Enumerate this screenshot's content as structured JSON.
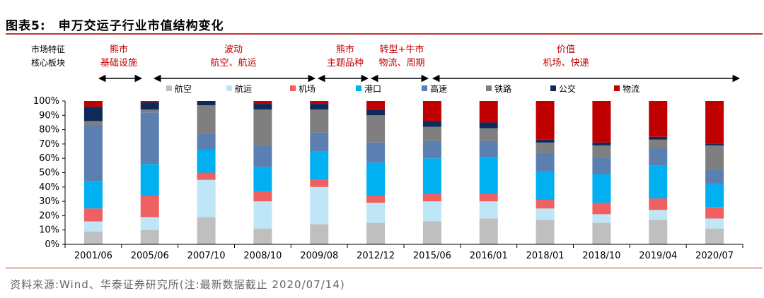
{
  "figure": {
    "title_num": "图表5:",
    "title": "申万交运子行业市值结构变化",
    "source": "资料来源:Wind、华泰证券研究所(注:最新数据截止 2020/07/14)"
  },
  "annotations": {
    "row_label_1": "市场特征",
    "row_label_2": "核心板块",
    "periods": [
      {
        "feature": "熊市",
        "sectors": "基础设施"
      },
      {
        "feature": "波动",
        "sectors": "航空、航运"
      },
      {
        "feature": "熊市",
        "sectors": "主题品种"
      },
      {
        "feature": "转型+牛市",
        "sectors": "物流、周期"
      },
      {
        "feature": "价值",
        "sectors": "机场、快递"
      }
    ]
  },
  "colors": {
    "航空": "#bfbfbf",
    "航运": "#bfe6f6",
    "机场": "#f06060",
    "港口": "#00b0f0",
    "高速": "#5a7fb0",
    "铁路": "#7f7f7f",
    "公交": "#0e2a5a",
    "物流": "#c00000",
    "accent": "#c4332b"
  },
  "chart_data": {
    "type": "bar",
    "stacked": true,
    "title": "申万交运子行业市值结构变化",
    "xlabel": "",
    "ylabel": "",
    "ylim": [
      0,
      100
    ],
    "y_ticks": [
      "0%",
      "10%",
      "20%",
      "30%",
      "40%",
      "50%",
      "60%",
      "70%",
      "80%",
      "90%",
      "100%"
    ],
    "legend_position": "top",
    "categories": [
      "2001/06",
      "2005/06",
      "2007/10",
      "2008/10",
      "2009/08",
      "2012/12",
      "2015/06",
      "2016/01",
      "2018/01",
      "2018/10",
      "2019/04",
      "2020/07"
    ],
    "series": [
      {
        "name": "航空",
        "values": [
          9,
          10,
          19,
          11,
          14,
          15,
          16,
          18,
          17,
          15,
          17,
          11
        ]
      },
      {
        "name": "航运",
        "values": [
          7,
          9,
          26,
          19,
          26,
          14,
          14,
          12,
          8,
          6,
          7,
          7
        ]
      },
      {
        "name": "机场",
        "values": [
          9,
          15,
          5,
          7,
          5,
          5,
          5,
          5,
          6,
          8,
          8,
          8
        ]
      },
      {
        "name": "港口",
        "values": [
          19,
          22,
          16,
          17,
          20,
          23,
          25,
          26,
          20,
          20,
          23,
          16
        ]
      },
      {
        "name": "高速",
        "values": [
          39,
          36,
          11,
          15,
          13,
          14,
          12,
          11,
          13,
          12,
          12,
          10
        ]
      },
      {
        "name": "铁路",
        "values": [
          3,
          2,
          20,
          25,
          16,
          19,
          10,
          9,
          7,
          8,
          6,
          17
        ]
      },
      {
        "name": "公交",
        "values": [
          10,
          5,
          3,
          4,
          4,
          4,
          4,
          4,
          2,
          2,
          2,
          1
        ]
      },
      {
        "name": "物流",
        "values": [
          4,
          1,
          0,
          2,
          2,
          6,
          14,
          15,
          27,
          29,
          25,
          30
        ]
      }
    ]
  }
}
